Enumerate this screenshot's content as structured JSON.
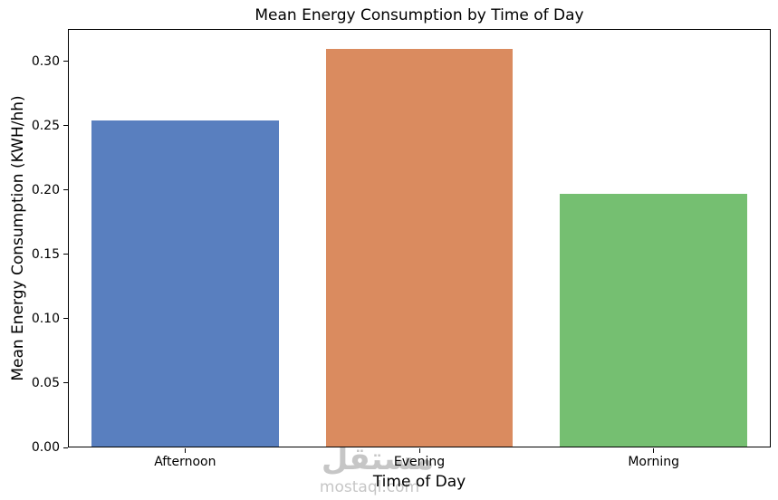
{
  "chart_data": {
    "type": "bar",
    "title": "Mean Energy Consumption by Time of Day",
    "xlabel": "Time of Day",
    "ylabel": "Mean Energy Consumption (KWH/hh)",
    "categories": [
      "Afternoon",
      "Evening",
      "Morning"
    ],
    "values": [
      0.253,
      0.309,
      0.196
    ],
    "bar_colors": [
      "#597FBF",
      "#DA8B5F",
      "#75BF71"
    ],
    "ylim": [
      0,
      0.325
    ],
    "yticks": [
      0.0,
      0.05,
      0.1,
      0.15,
      0.2,
      0.25,
      0.3
    ],
    "ytick_labels": [
      "0.00",
      "0.05",
      "0.10",
      "0.15",
      "0.20",
      "0.25",
      "0.30"
    ],
    "grid": false,
    "legend": null,
    "bar_width_fraction": 0.8
  },
  "colors": {
    "background": "#ffffff",
    "axis": "#000000",
    "text": "#000000",
    "watermark": "#bdbdbd"
  },
  "watermark": {
    "arabic": "مستقل",
    "latin": "mostaql.com"
  }
}
